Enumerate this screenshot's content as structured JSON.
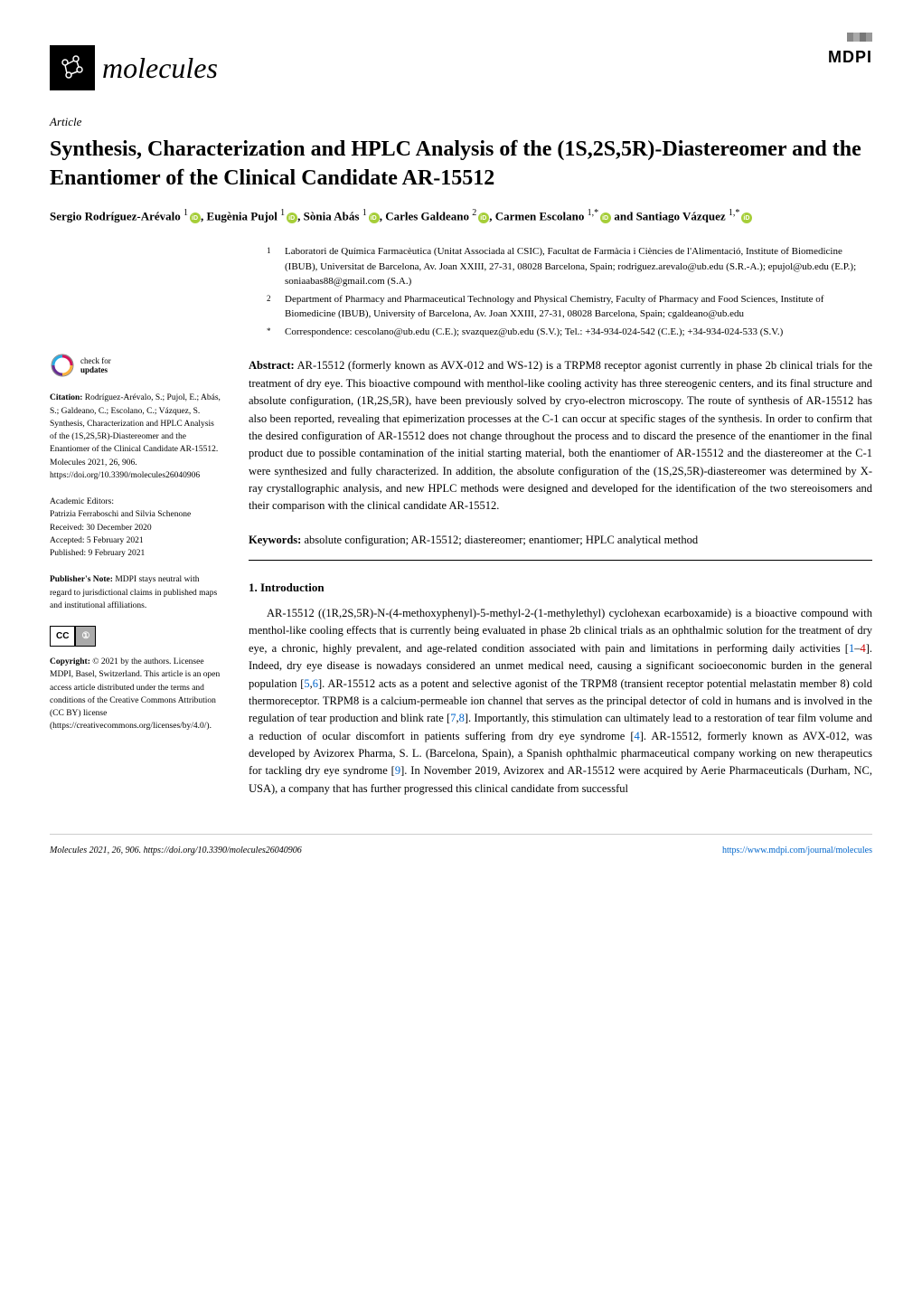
{
  "header": {
    "journal_name": "molecules",
    "publisher": "MDPI"
  },
  "article_type": "Article",
  "title": "Synthesis, Characterization and HPLC Analysis of the (1S,2S,5R)-Diastereomer and the Enantiomer of the Clinical Candidate AR-15512",
  "authors_html": "Sergio Rodríguez-Arévalo <sup>1</sup><span class='orcid'></span>, Eugènia Pujol <sup>1</sup><span class='orcid'></span>, Sònia Abás <sup>1</sup><span class='orcid'></span>, Carles Galdeano <sup>2</sup><span class='orcid'></span>, Carmen Escolano <sup>1,*</sup><span class='orcid'></span> and Santiago Vázquez <sup>1,*</sup><span class='orcid'></span>",
  "affiliations": [
    {
      "num": "1",
      "text": "Laboratori de Química Farmacèutica (Unitat Associada al CSIC), Facultat de Farmàcia i Ciències de l'Alimentació, Institute of Biomedicine (IBUB), Universitat de Barcelona, Av. Joan XXIII, 27-31, 08028 Barcelona, Spain; rodriguez.arevalo@ub.edu (S.R.-A.); epujol@ub.edu (E.P.); soniaabas88@gmail.com (S.A.)"
    },
    {
      "num": "2",
      "text": "Department of Pharmacy and Pharmaceutical Technology and Physical Chemistry, Faculty of Pharmacy and Food Sciences, Institute of Biomedicine (IBUB), University of Barcelona, Av. Joan XXIII, 27-31, 08028 Barcelona, Spain; cgaldeano@ub.edu"
    },
    {
      "num": "*",
      "text": "Correspondence: cescolano@ub.edu (C.E.); svazquez@ub.edu (S.V.); Tel.: +34-934-024-542 (C.E.); +34-934-024-533 (S.V.)"
    }
  ],
  "sidebar": {
    "check_updates": "check for updates",
    "citation_label": "Citation:",
    "citation": "Rodríguez-Arévalo, S.; Pujol, E.; Abás, S.; Galdeano, C.; Escolano, C.; Vázquez, S. Synthesis, Characterization and HPLC Analysis of the (1S,2S,5R)-Diastereomer and the Enantiomer of the Clinical Candidate AR-15512. Molecules 2021, 26, 906. https://doi.org/10.3390/molecules26040906",
    "editors_label": "Academic Editors:",
    "editors": "Patrizia Ferraboschi and Silvia Schenone",
    "received": "Received: 30 December 2020",
    "accepted": "Accepted: 5 February 2021",
    "published": "Published: 9 February 2021",
    "publishers_note_label": "Publisher's Note:",
    "publishers_note": "MDPI stays neutral with regard to jurisdictional claims in published maps and institutional affiliations.",
    "copyright_label": "Copyright:",
    "copyright": "© 2021 by the authors. Licensee MDPI, Basel, Switzerland. This article is an open access article distributed under the terms and conditions of the Creative Commons Attribution (CC BY) license (https://creativecommons.org/licenses/by/4.0/)."
  },
  "abstract_label": "Abstract:",
  "abstract": "AR-15512 (formerly known as AVX-012 and WS-12) is a TRPM8 receptor agonist currently in phase 2b clinical trials for the treatment of dry eye. This bioactive compound with menthol-like cooling activity has three stereogenic centers, and its final structure and absolute configuration, (1R,2S,5R), have been previously solved by cryo-electron microscopy. The route of synthesis of AR-15512 has also been reported, revealing that epimerization processes at the C-1 can occur at specific stages of the synthesis. In order to confirm that the desired configuration of AR-15512 does not change throughout the process and to discard the presence of the enantiomer in the final product due to possible contamination of the initial starting material, both the enantiomer of AR-15512 and the diastereomer at the C-1 were synthesized and fully characterized. In addition, the absolute configuration of the (1S,2S,5R)-diastereomer was determined by X-ray crystallographic analysis, and new HPLC methods were designed and developed for the identification of the two stereoisomers and their comparison with the clinical candidate AR-15512.",
  "keywords_label": "Keywords:",
  "keywords": "absolute configuration; AR-15512; diastereomer; enantiomer; HPLC analytical method",
  "section_heading": "1. Introduction",
  "body_text": "AR-15512 ((1R,2S,5R)-N-(4-methoxyphenyl)-5-methyl-2-(1-methylethyl) cyclohexan ecarboxamide) is a bioactive compound with menthol-like cooling effects that is currently being evaluated in phase 2b clinical trials as an ophthalmic solution for the treatment of dry eye, a chronic, highly prevalent, and age-related condition associated with pain and limitations in performing daily activities [1–4]. Indeed, dry eye disease is nowadays considered an unmet medical need, causing a significant socioeconomic burden in the general population [5,6]. AR-15512 acts as a potent and selective agonist of the TRPM8 (transient receptor potential melastatin member 8) cold thermoreceptor. TRPM8 is a calcium-permeable ion channel that serves as the principal detector of cold in humans and is involved in the regulation of tear production and blink rate [7,8]. Importantly, this stimulation can ultimately lead to a restoration of tear film volume and a reduction of ocular discomfort in patients suffering from dry eye syndrome [4]. AR-15512, formerly known as AVX-012, was developed by Avizorex Pharma, S. L. (Barcelona, Spain), a Spanish ophthalmic pharmaceutical company working on new therapeutics for tackling dry eye syndrome [9]. In November 2019, Avizorex and AR-15512 were acquired by Aerie Pharmaceuticals (Durham, NC, USA), a company that has further progressed this clinical candidate from successful",
  "footer": {
    "left": "Molecules 2021, 26, 906. https://doi.org/10.3390/molecules26040906",
    "right": "https://www.mdpi.com/journal/molecules"
  }
}
